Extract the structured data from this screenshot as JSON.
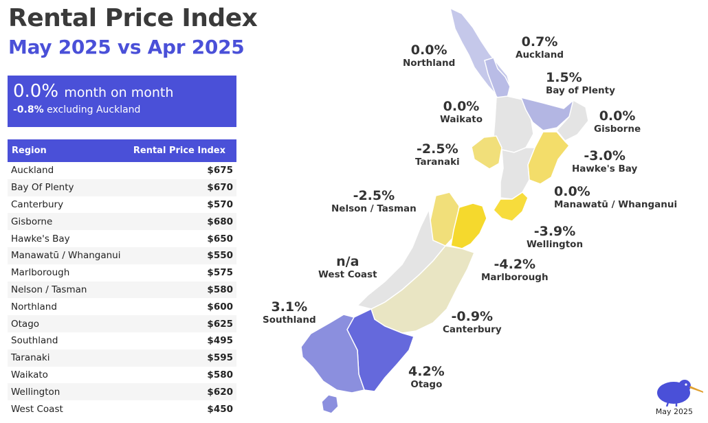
{
  "header": {
    "title": "Rental Price Index",
    "subtitle": "May 2025 vs Apr 2025"
  },
  "kpi": {
    "value": "0.0%",
    "value_label": "month on month",
    "secondary_value": "-0.8%",
    "secondary_label": "excluding Auckland"
  },
  "table": {
    "headers": [
      "Region",
      "Rental Price Index"
    ],
    "rows": [
      {
        "region": "Auckland",
        "value": "$675"
      },
      {
        "region": "Bay Of Plenty",
        "value": "$670"
      },
      {
        "region": "Canterbury",
        "value": "$570"
      },
      {
        "region": "Gisborne",
        "value": "$680"
      },
      {
        "region": "Hawke's Bay",
        "value": "$650"
      },
      {
        "region": "Manawatū / Whanganui",
        "value": "$550"
      },
      {
        "region": "Marlborough",
        "value": "$575"
      },
      {
        "region": "Nelson / Tasman",
        "value": "$580"
      },
      {
        "region": "Northland",
        "value": "$600"
      },
      {
        "region": "Otago",
        "value": "$625"
      },
      {
        "region": "Southland",
        "value": "$495"
      },
      {
        "region": "Taranaki",
        "value": "$595"
      },
      {
        "region": "Waikato",
        "value": "$580"
      },
      {
        "region": "Wellington",
        "value": "$620"
      },
      {
        "region": "West Coast",
        "value": "$450"
      }
    ]
  },
  "map": {
    "regions": {
      "northland": {
        "name": "Northland",
        "change": "0.0%",
        "color": "#c5c8ea"
      },
      "auckland": {
        "name": "Auckland",
        "change": "0.7%",
        "color": "#b9bce6"
      },
      "bay_of_plenty": {
        "name": "Bay of Plenty",
        "change": "1.5%",
        "color": "#b3b6e3"
      },
      "waikato": {
        "name": "Waikato",
        "change": "0.0%",
        "color": "#e4e4e4"
      },
      "gisborne": {
        "name": "Gisborne",
        "change": "0.0%",
        "color": "#e4e4e4"
      },
      "taranaki": {
        "name": "Taranaki",
        "change": "-2.5%",
        "color": "#f1df7a"
      },
      "hawkes_bay": {
        "name": "Hawke's Bay",
        "change": "-3.0%",
        "color": "#f3dd6a"
      },
      "manawatu": {
        "name": "Manawatū / Whanganui",
        "change": "0.0%",
        "color": "#e4e4e4"
      },
      "wellington": {
        "name": "Wellington",
        "change": "-3.9%",
        "color": "#f7dc3c"
      },
      "nelson_tasman": {
        "name": "Nelson / Tasman",
        "change": "-2.5%",
        "color": "#f1df7a"
      },
      "marlborough": {
        "name": "Marlborough",
        "change": "-4.2%",
        "color": "#f5d92d"
      },
      "west_coast": {
        "name": "West Coast",
        "change": "n/a",
        "color": "#e4e4e4"
      },
      "canterbury": {
        "name": "Canterbury",
        "change": "-0.9%",
        "color": "#e9e5c3"
      },
      "southland": {
        "name": "Southland",
        "change": "3.1%",
        "color": "#8b8fde"
      },
      "otago": {
        "name": "Otago",
        "change": "4.2%",
        "color": "#6569dc"
      }
    }
  },
  "footer": {
    "date": "May 2025"
  },
  "icons": {
    "logo": "kiwi-bird-icon"
  },
  "colors": {
    "accent": "#4a50d8"
  }
}
